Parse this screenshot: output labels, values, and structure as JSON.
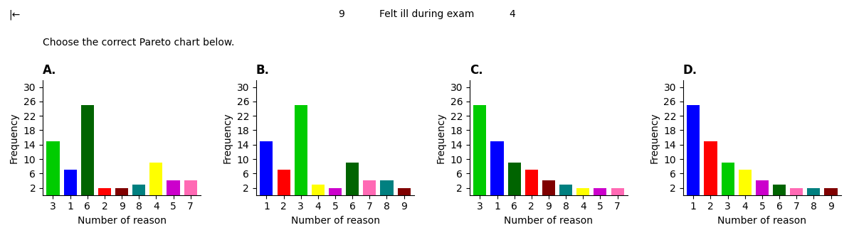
{
  "title": "Choose the correct Pareto chart below.",
  "annotations": [
    "|←",
    "9",
    "Felt ill during exam",
    "4"
  ],
  "chart_data": [
    {
      "type": "bar",
      "title": "A.",
      "xlabel": "Number of reason",
      "ylabel": "Frequency",
      "categories": [
        "3",
        "1",
        "6",
        "2",
        "9",
        "8",
        "4",
        "5",
        "7"
      ],
      "values": [
        15,
        7,
        25,
        2,
        2,
        3,
        9,
        4,
        4
      ],
      "colors": [
        "#00cc00",
        "#0000ff",
        "#006400",
        "#ff0000",
        "#800000",
        "#008080",
        "#ffff00",
        "#cc00cc",
        "#ff69b4"
      ],
      "ylim": [
        0,
        32
      ],
      "yticks": [
        2,
        6,
        10,
        14,
        18,
        22,
        26,
        30
      ]
    },
    {
      "type": "bar",
      "title": "B.",
      "xlabel": "Number of reason",
      "ylabel": "Frequency",
      "categories": [
        "1",
        "2",
        "3",
        "4",
        "5",
        "6",
        "7",
        "8",
        "9"
      ],
      "values": [
        15,
        7,
        25,
        3,
        2,
        9,
        4,
        4,
        2
      ],
      "colors": [
        "#0000ff",
        "#ff0000",
        "#00cc00",
        "#ffff00",
        "#cc00cc",
        "#006400",
        "#ff69b4",
        "#008080",
        "#800000"
      ],
      "ylim": [
        0,
        32
      ],
      "yticks": [
        2,
        6,
        10,
        14,
        18,
        22,
        26,
        30
      ]
    },
    {
      "type": "bar",
      "title": "C.",
      "xlabel": "Number of reason",
      "ylabel": "Frequency",
      "categories": [
        "3",
        "1",
        "6",
        "2",
        "9",
        "8",
        "4",
        "5",
        "7"
      ],
      "values": [
        25,
        15,
        9,
        7,
        4,
        3,
        2,
        2,
        2
      ],
      "colors": [
        "#00cc00",
        "#0000ff",
        "#006400",
        "#ff0000",
        "#800000",
        "#008080",
        "#ffff00",
        "#cc00cc",
        "#ff69b4"
      ],
      "ylim": [
        0,
        32
      ],
      "yticks": [
        2,
        6,
        10,
        14,
        18,
        22,
        26,
        30
      ]
    },
    {
      "type": "bar",
      "title": "D.",
      "xlabel": "Number of reason",
      "ylabel": "Frequency",
      "categories": [
        "1",
        "2",
        "3",
        "4",
        "5",
        "6",
        "7",
        "8",
        "9"
      ],
      "values": [
        25,
        15,
        9,
        7,
        4,
        3,
        2,
        2,
        2
      ],
      "colors": [
        "#0000ff",
        "#ff0000",
        "#00cc00",
        "#ffff00",
        "#cc00cc",
        "#006400",
        "#ff69b4",
        "#008080",
        "#800000"
      ],
      "ylim": [
        0,
        32
      ],
      "yticks": [
        2,
        6,
        10,
        14,
        18,
        22,
        26,
        30
      ]
    }
  ]
}
